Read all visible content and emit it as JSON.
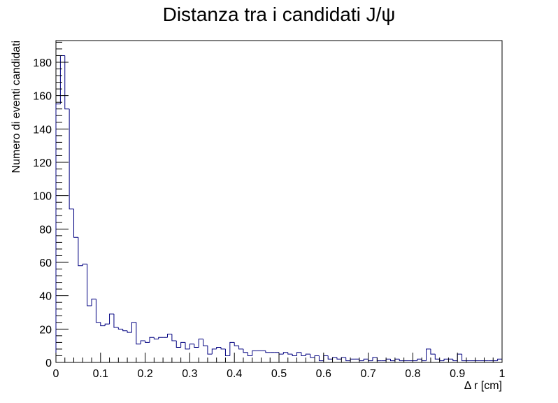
{
  "chart_data": {
    "type": "bar",
    "title": "Distanza tra i candidati J/ψ",
    "xlabel": "Δ r [cm]",
    "ylabel": "Numero di eventi candidati",
    "xlim": [
      0,
      1
    ],
    "ylim": [
      0,
      193
    ],
    "grid": false,
    "legend": "none",
    "histogram": true,
    "bin_width": 0.01,
    "x_ticks": [
      {
        "value": 0,
        "label": "0"
      },
      {
        "value": 0.1,
        "label": "0.1"
      },
      {
        "value": 0.2,
        "label": "0.2"
      },
      {
        "value": 0.3,
        "label": "0.3"
      },
      {
        "value": 0.4,
        "label": "0.4"
      },
      {
        "value": 0.5,
        "label": "0.5"
      },
      {
        "value": 0.6,
        "label": "0.6"
      },
      {
        "value": 0.7,
        "label": "0.7"
      },
      {
        "value": 0.8,
        "label": "0.8"
      },
      {
        "value": 0.9,
        "label": "0.9"
      },
      {
        "value": 1,
        "label": "1"
      }
    ],
    "y_ticks": [
      {
        "value": 0,
        "label": "0"
      },
      {
        "value": 20,
        "label": "20"
      },
      {
        "value": 40,
        "label": "40"
      },
      {
        "value": 60,
        "label": "60"
      },
      {
        "value": 80,
        "label": "80"
      },
      {
        "value": 100,
        "label": "100"
      },
      {
        "value": 120,
        "label": "120"
      },
      {
        "value": 140,
        "label": "140"
      },
      {
        "value": 160,
        "label": "160"
      },
      {
        "value": 180,
        "label": "180"
      }
    ],
    "line_color": "#000080",
    "values": [
      155,
      184,
      152,
      92,
      75,
      58,
      59,
      34,
      38,
      24,
      22,
      23,
      29,
      21,
      20,
      19,
      18,
      24,
      11,
      13,
      12,
      15,
      14,
      15,
      15,
      17,
      13,
      9,
      12,
      8,
      11,
      9,
      14,
      10,
      5,
      8,
      9,
      8,
      4,
      12,
      10,
      8,
      6,
      4,
      7,
      7,
      7,
      6,
      6,
      6,
      5,
      6,
      5,
      4,
      6,
      4,
      5,
      3,
      4,
      1,
      4,
      2,
      3,
      2,
      3,
      1,
      2,
      2,
      1,
      2,
      1,
      3,
      1,
      1,
      2,
      1,
      2,
      1,
      1,
      1,
      1,
      2,
      1,
      8,
      5,
      2,
      1,
      2,
      2,
      1,
      5,
      1,
      1,
      1,
      1,
      1,
      1,
      1,
      1,
      2,
      1
    ]
  }
}
